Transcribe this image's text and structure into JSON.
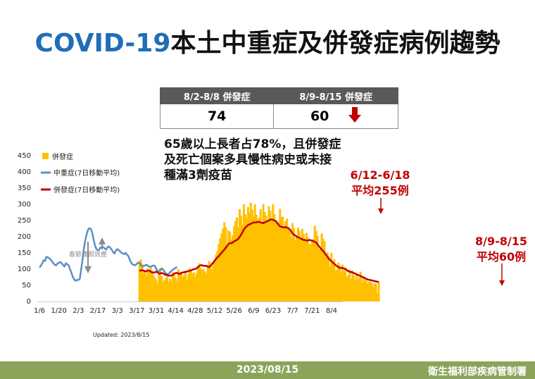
{
  "title": {
    "latin": "COVID-19",
    "cjk": "本土中重症及併發症病例趨勢"
  },
  "comparison_table": {
    "headers": [
      "8/2-8/8 併發症",
      "8/9-8/15 併發症"
    ],
    "values": [
      "74",
      "60"
    ],
    "trend": "down",
    "arrow_color": "#c00000"
  },
  "note": "65歲以上長者占78%，且併發症\n及死亡個案多具慢性病史或未接\n種滿3劑疫苗",
  "annotations": {
    "peak": "6/12-6/18\n平均255例",
    "latest": "8/9-8/15\n平均60例",
    "holiday": "春節連假效應"
  },
  "updated": "Updated: 2023/8/15",
  "footer": {
    "date": "2023/08/15",
    "org": "衛生福利部疾病管制署"
  },
  "colors": {
    "bars": "#ffc000",
    "severe_line": "#5b8fc7",
    "complication_line": "#c00000",
    "accent_blue": "#1f6eb7",
    "footer": "#8aa55a"
  },
  "chart_data": {
    "type": "bar",
    "title": "",
    "x_tick_labels": [
      "1/6",
      "1/20",
      "2/3",
      "2/17",
      "3/3",
      "3/17",
      "3/31",
      "4/14",
      "4/28",
      "5/12",
      "5/26",
      "6/9",
      "6/23",
      "7/7",
      "7/21",
      "8/4"
    ],
    "ylim": [
      0,
      450
    ],
    "y_ticks": [
      0,
      50,
      100,
      150,
      200,
      250,
      300,
      350,
      400,
      450
    ],
    "legend": [
      "併發症",
      "中重症(7日移動平均)",
      "併發症(7日移動平均)"
    ],
    "legend_position": "top-left",
    "grid": false,
    "series": [
      {
        "name": "中重症(7日移動平均)",
        "start_date": "2023-01-06",
        "values": [
          105,
          110,
          118,
          127,
          125,
          138,
          136,
          134,
          130,
          124,
          118,
          113,
          112,
          117,
          120,
          122,
          118,
          112,
          108,
          118,
          115,
          112,
          100,
          88,
          76,
          68,
          64,
          67,
          66,
          70,
          100,
          130,
          165,
          190,
          208,
          222,
          226,
          224,
          212,
          190,
          172,
          162,
          158,
          160,
          167,
          166,
          168,
          163,
          160,
          168,
          170,
          165,
          160,
          152,
          148,
          158,
          162,
          158,
          155,
          150,
          148,
          146,
          150,
          144,
          140,
          128,
          120,
          114,
          113,
          112,
          116,
          120,
          118,
          113,
          108,
          110,
          111,
          114,
          110,
          108,
          107,
          110,
          111,
          110,
          100,
          94,
          94,
          98,
          102,
          98,
          92,
          85,
          84,
          86,
          90,
          95,
          98,
          102,
          104,
          106
        ]
      },
      {
        "name": "併發症(7日移動平均)",
        "start_date": "2023-03-19",
        "values": [
          94,
          96,
          97,
          95,
          93,
          94,
          96,
          95,
          92,
          90,
          89,
          90,
          92,
          90,
          86,
          87,
          88,
          86,
          84,
          82,
          82,
          80,
          80,
          80,
          83,
          86,
          88,
          88,
          86,
          85,
          88,
          90,
          90,
          92,
          92,
          94,
          95,
          96,
          98,
          100,
          100,
          103,
          106,
          110,
          112,
          112,
          110,
          110,
          110,
          108,
          106,
          110,
          116,
          120,
          126,
          132,
          136,
          140,
          146,
          150,
          156,
          160,
          166,
          172,
          178,
          180,
          180,
          182,
          186,
          188,
          190,
          194,
          200,
          206,
          214,
          222,
          228,
          232,
          236,
          238,
          240,
          242,
          244,
          244,
          244,
          246,
          245,
          244,
          243,
          242,
          244,
          246,
          248,
          250,
          253,
          253,
          252,
          250,
          248,
          242,
          236,
          232,
          230,
          230,
          228,
          230,
          228,
          226,
          222,
          216,
          210,
          206,
          204,
          200,
          198,
          196,
          194,
          192,
          190,
          190,
          188,
          188,
          190,
          189,
          188,
          186,
          184,
          182,
          176,
          170,
          165,
          160,
          156,
          150,
          144,
          138,
          132,
          128,
          124,
          120,
          116,
          112,
          109,
          106,
          104,
          104,
          103,
          102,
          100,
          97,
          94,
          92,
          91,
          90,
          88,
          86,
          84,
          82,
          80,
          78,
          76,
          74,
          72,
          70,
          68,
          67,
          66,
          65,
          64,
          63,
          62,
          61,
          60
        ]
      },
      {
        "name": "併發症",
        "start_date": "2023-03-19",
        "values": [
          125,
          130,
          115,
          88,
          92,
          80,
          102,
          98,
          105,
          96,
          82,
          74,
          68,
          55,
          90,
          104,
          78,
          60,
          66,
          72,
          81,
          58,
          70,
          62,
          90,
          85,
          73,
          64,
          100,
          92,
          88,
          75,
          82,
          95,
          68,
          84,
          103,
          98,
          86,
          90,
          76,
          88,
          110,
          118,
          102,
          96,
          100,
          92,
          84,
          112,
          125,
          108,
          98,
          122,
          130,
          145,
          156,
          178,
          195,
          210,
          225,
          245,
          230,
          168,
          220,
          215,
          190,
          205,
          232,
          248,
          260,
          228,
          285,
          265,
          238,
          300,
          270,
          258,
          292,
          275,
          305,
          284,
          262,
          300,
          268,
          254,
          258,
          285,
          244,
          300,
          276,
          265,
          252,
          294,
          280,
          256,
          300,
          270,
          248,
          236,
          244,
          286,
          260,
          262,
          228,
          248,
          256,
          230,
          216,
          198,
          242,
          226,
          190,
          204,
          228,
          218,
          196,
          224,
          210,
          190,
          212,
          198,
          178,
          176,
          186,
          192,
          234,
          218,
          202,
          160,
          168,
          210,
          194,
          186,
          136,
          152,
          140,
          108,
          150,
          118,
          130,
          96,
          98,
          120,
          112,
          88,
          114,
          92,
          105,
          76,
          80,
          98,
          70,
          96,
          82,
          66,
          86,
          68,
          74,
          92,
          58,
          78,
          64,
          72,
          56,
          62,
          60,
          58,
          44,
          56,
          55,
          26,
          60
        ]
      }
    ]
  }
}
